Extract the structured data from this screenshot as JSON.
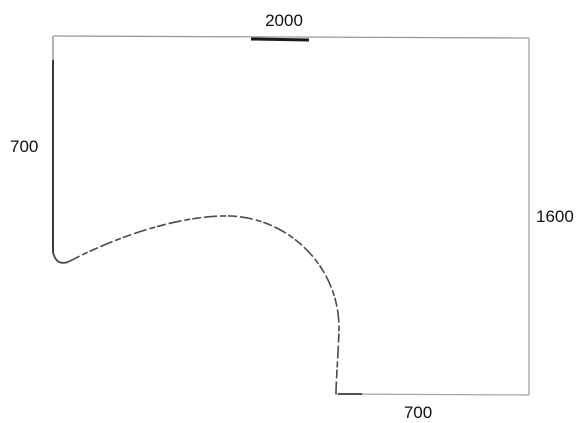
{
  "diagram": {
    "dimensions": {
      "top_width": "2000",
      "left_height": "700",
      "right_height": "1600",
      "bottom_width": "700"
    },
    "colors": {
      "outline": "#9a9a9a",
      "outline_dark": "#4a4a4a",
      "emphasis": "#1a1a1a",
      "text": "#111111"
    }
  }
}
